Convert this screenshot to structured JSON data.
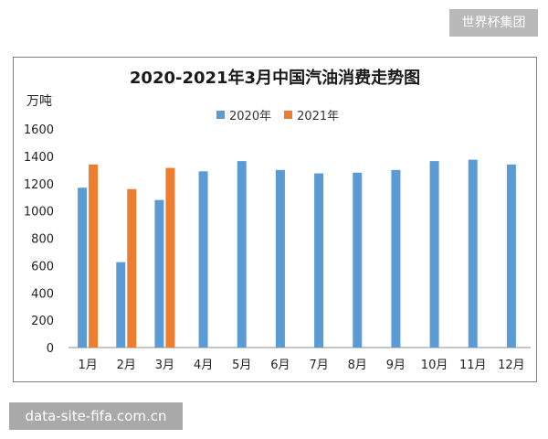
{
  "brand_tag": "世界杯集团",
  "footer_source": "data-site-fifa.com.cn",
  "colors": {
    "series_2020": "#5b9bd5",
    "series_2021": "#ed7d31",
    "axis": "#8c8c8c",
    "frame": "#7f7f7f"
  },
  "chart_data": {
    "type": "bar",
    "title": "2020-2021年3月中国汽油消费走势图",
    "ylabel": "万吨",
    "xlabel": "",
    "ylim": [
      0,
      1600
    ],
    "yticks": [
      0,
      200,
      400,
      600,
      800,
      1000,
      1200,
      1400,
      1600
    ],
    "grid": false,
    "legend_position": "top",
    "categories": [
      "1月",
      "2月",
      "3月",
      "4月",
      "5月",
      "6月",
      "7月",
      "8月",
      "9月",
      "10月",
      "11月",
      "12月"
    ],
    "series": [
      {
        "name": "2020年",
        "values": [
          1170,
          625,
          1080,
          1290,
          1365,
          1300,
          1275,
          1280,
          1300,
          1365,
          1375,
          1340
        ]
      },
      {
        "name": "2021年",
        "values": [
          1340,
          1160,
          1315,
          null,
          null,
          null,
          null,
          null,
          null,
          null,
          null,
          null
        ]
      }
    ]
  }
}
